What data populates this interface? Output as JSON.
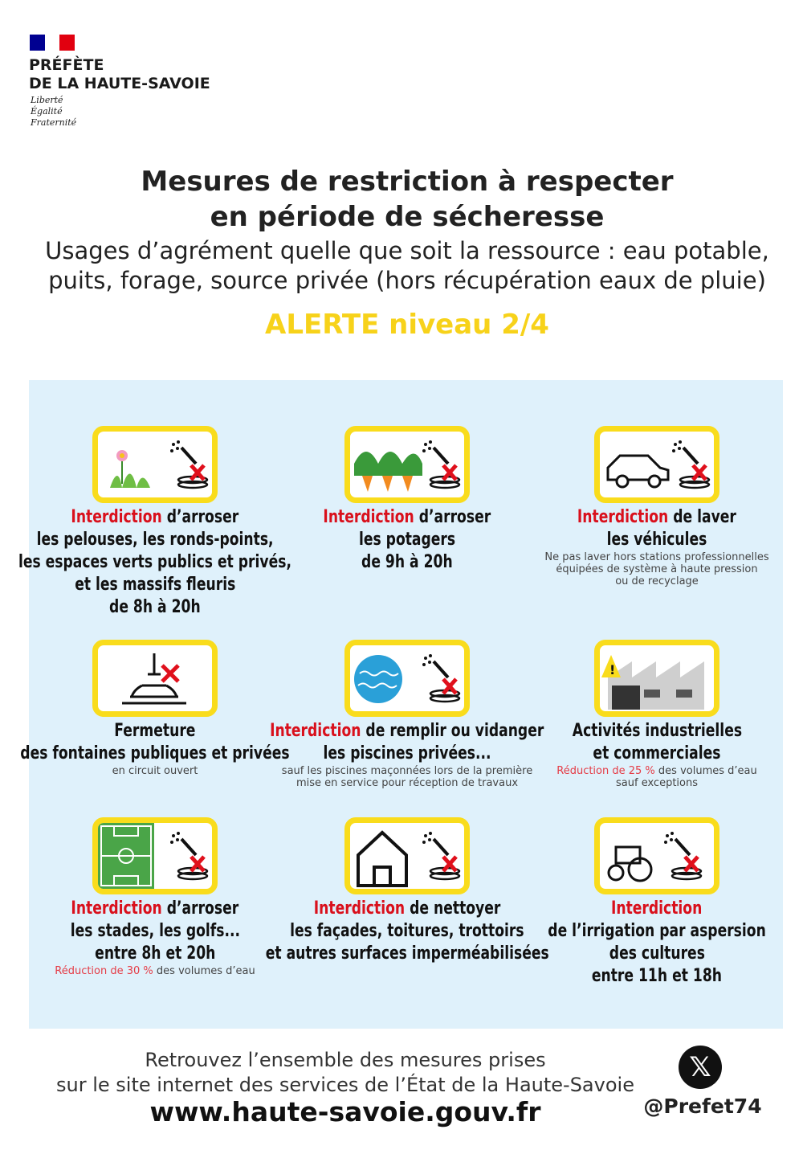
{
  "header": {
    "logo_line1": "PRÉFÈTE",
    "logo_line2": "DE LA HAUTE-SAVOIE",
    "motto": [
      "Liberté",
      "Égalité",
      "Fraternité"
    ],
    "flag_colors": [
      "#000091",
      "#ffffff",
      "#e1000f"
    ]
  },
  "title": {
    "line1": "Mesures de restriction à respecter",
    "line2": "en période de sécheresse"
  },
  "subtitle": {
    "line1": "Usages d’agrément quelle que soit la ressource :  eau potable,",
    "line2": "puits, forage, source privée (hors récupération eaux de pluie)"
  },
  "alert": {
    "label": "ALERTE niveau 2/4",
    "color": "#f7d21a"
  },
  "colors": {
    "panel": "#dff1fb",
    "accent_red": "#d9101c",
    "icon_border": "#f9dc1c"
  },
  "cells": [
    {
      "icon": "flowers-hose-icon",
      "red": "Interdiction",
      "rest": " d’arroser",
      "lines": [
        "les pelouses, les ronds-points,",
        "les espaces verts publics et privés,",
        "et les massifs fleuris",
        "de 8h à 20h"
      ]
    },
    {
      "icon": "vegetables-hose-icon",
      "red": "Interdiction",
      "rest": " d’arroser",
      "lines": [
        "les potagers",
        "de 9h à 20h"
      ]
    },
    {
      "icon": "car-hose-icon",
      "red": "Interdiction",
      "rest": " de laver",
      "lines": [
        "les véhicules"
      ],
      "notes": [
        "Ne pas laver hors stations professionnelles",
        "équipées de système à haute pression",
        "ou de recyclage"
      ]
    },
    {
      "icon": "fountain-icon",
      "red": "",
      "rest": "",
      "lines": [
        "Fermeture",
        "des fontaines publiques et privées"
      ],
      "notes": [
        "en circuit ouvert"
      ]
    },
    {
      "icon": "pool-hose-icon",
      "red": "Interdiction",
      "rest": " de remplir ou vidanger",
      "lines": [
        "les piscines privées..."
      ],
      "notes": [
        "sauf les piscines maçonnées lors de la première",
        "mise en service pour réception de travaux"
      ]
    },
    {
      "icon": "factory-warning-icon",
      "red": "",
      "rest": "",
      "lines": [
        "Activités industrielles",
        "et commerciales"
      ],
      "note_red": "Réduction de 25 %",
      "note_rest": " des volumes d’eau",
      "notes": [
        "sauf exceptions"
      ]
    },
    {
      "icon": "stadium-hose-icon",
      "red": "Interdiction",
      "rest": " d’arroser",
      "lines": [
        "les stades, les golfs...",
        "entre 8h et 20h"
      ],
      "note_red": "Réduction de 30 %",
      "note_rest": " des volumes d’eau"
    },
    {
      "icon": "house-hose-icon",
      "red": "Interdiction",
      "rest": " de nettoyer",
      "lines": [
        "les façades, toitures, trottoirs",
        "et autres surfaces imperméabilisées"
      ]
    },
    {
      "icon": "tractor-hose-icon",
      "red": "Interdiction",
      "rest": "",
      "lines": [
        "de l’irrigation par aspersion",
        "des cultures",
        "entre 11h et 18h"
      ]
    }
  ],
  "footer": {
    "line1": "Retrouvez l’ensemble des mesures prises",
    "line2": "sur le site internet des services de l’État de la Haute-Savoie",
    "url": "www.haute-savoie.gouv.fr",
    "social_icon": "x-logo-icon",
    "social_glyph": "𝕏",
    "handle": "@Prefet74"
  }
}
